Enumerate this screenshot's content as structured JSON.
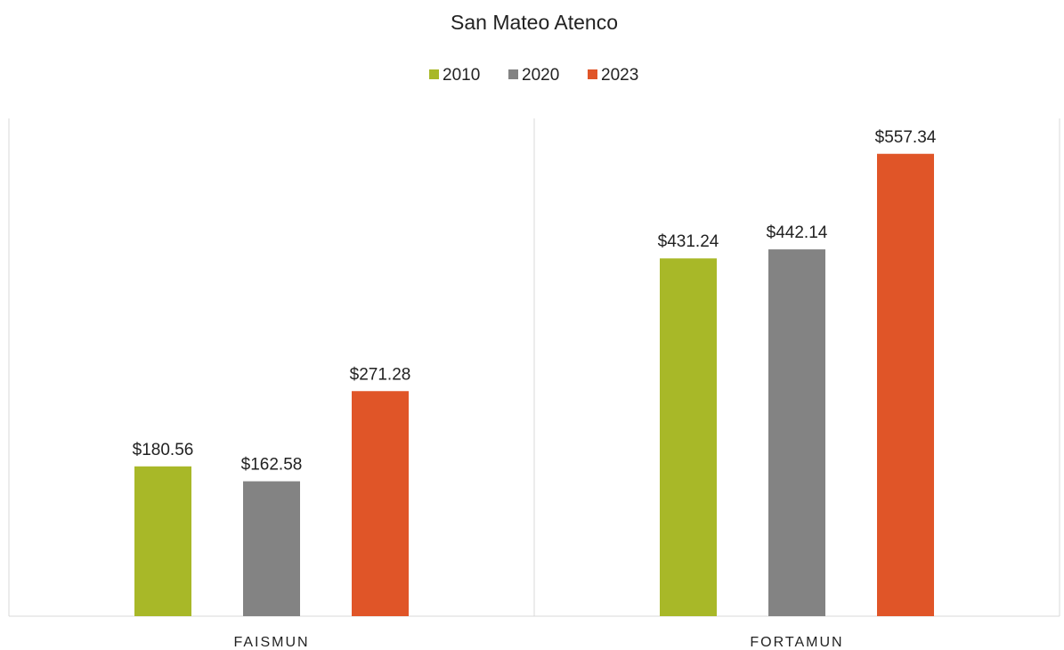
{
  "chart_data": {
    "type": "bar",
    "title": "San Mateo Atenco",
    "categories": [
      "FAISMUN",
      "FORTAMUN"
    ],
    "series": [
      {
        "name": "2010",
        "color": "#a8b828",
        "values": [
          180.56,
          431.24
        ],
        "value_labels": [
          "$180.56",
          "$431.24"
        ]
      },
      {
        "name": "2020",
        "color": "#838383",
        "values": [
          162.58,
          442.14
        ],
        "value_labels": [
          "$162.58",
          "$442.14"
        ]
      },
      {
        "name": "2023",
        "color": "#e05528",
        "values": [
          271.28,
          557.34
        ],
        "value_labels": [
          "$271.28",
          "$557.34"
        ]
      }
    ],
    "ylim": [
      0,
      600
    ],
    "legend": "top"
  }
}
